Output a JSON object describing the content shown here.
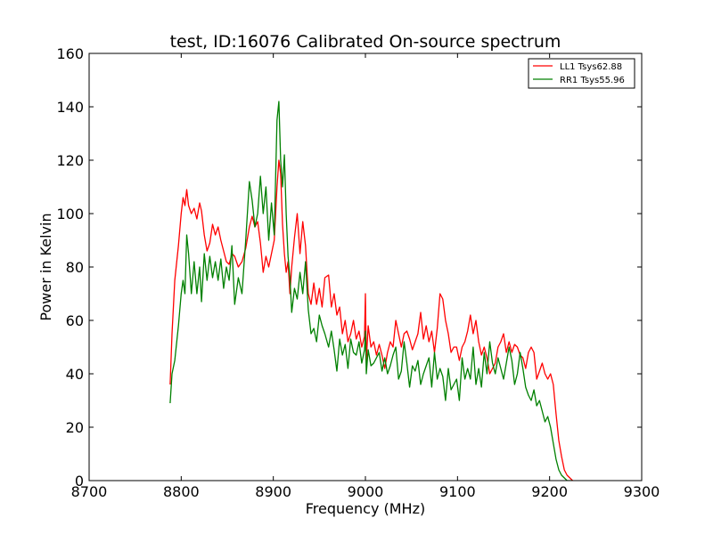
{
  "chart_data": {
    "type": "line",
    "title": "test, ID:16076 Calibrated On-source spectrum",
    "xlabel": "Frequency (MHz)",
    "ylabel": "Power in Kelvin",
    "xlim": [
      8700,
      9300
    ],
    "ylim": [
      0,
      160
    ],
    "xticks": [
      8700,
      8800,
      8900,
      9000,
      9100,
      9200,
      9300
    ],
    "yticks": [
      0,
      20,
      40,
      60,
      80,
      100,
      120,
      140,
      160
    ],
    "grid": false,
    "legend_position": "top-right",
    "series": [
      {
        "name": "LL1 Tsys62.88",
        "color": "#ff0000",
        "x": [
          8788,
          8790,
          8793,
          8797,
          8800,
          8802,
          8804,
          8806,
          8808,
          8811,
          8814,
          8817,
          8820,
          8822,
          8825,
          8828,
          8831,
          8834,
          8837,
          8840,
          8843,
          8846,
          8849,
          8852,
          8855,
          8858,
          8862,
          8866,
          8870,
          8874,
          8877,
          8880,
          8883,
          8886,
          8889,
          8892,
          8895,
          8898,
          8901,
          8904,
          8906,
          8908,
          8910,
          8912,
          8914,
          8916,
          8918,
          8920,
          8923,
          8926,
          8929,
          8932,
          8935,
          8938,
          8941,
          8944,
          8947,
          8950,
          8953,
          8956,
          8960,
          8963,
          8966,
          8969,
          8972,
          8975,
          8978,
          8981,
          8984,
          8987,
          8990,
          8993,
          8996,
          8999,
          9000,
          9001,
          9003,
          9006,
          9009,
          9012,
          9015,
          9018,
          9021,
          9024,
          9027,
          9030,
          9033,
          9036,
          9039,
          9042,
          9045,
          9048,
          9051,
          9054,
          9057,
          9060,
          9063,
          9066,
          9069,
          9072,
          9075,
          9078,
          9081,
          9084,
          9087,
          9090,
          9093,
          9096,
          9099,
          9102,
          9105,
          9108,
          9111,
          9114,
          9117,
          9120,
          9123,
          9126,
          9129,
          9132,
          9135,
          9138,
          9141,
          9144,
          9147,
          9150,
          9153,
          9156,
          9159,
          9162,
          9165,
          9168,
          9171,
          9174,
          9177,
          9180,
          9183,
          9186,
          9189,
          9192,
          9195,
          9198,
          9201,
          9204,
          9207,
          9210,
          9213,
          9216,
          9219,
          9222,
          9225
        ],
        "values": [
          36,
          55,
          75,
          88,
          100,
          106,
          103,
          109,
          103,
          100,
          102,
          98,
          104,
          101,
          92,
          86,
          89,
          96,
          92,
          95,
          90,
          86,
          82,
          81,
          85,
          84,
          80,
          82,
          87,
          95,
          99,
          95,
          97,
          89,
          78,
          84,
          80,
          85,
          90,
          110,
          120,
          115,
          96,
          85,
          78,
          82,
          70,
          80,
          91,
          100,
          85,
          97,
          88,
          70,
          66,
          74,
          66,
          72,
          65,
          76,
          77,
          65,
          70,
          62,
          65,
          55,
          60,
          52,
          55,
          60,
          53,
          56,
          50,
          54,
          70,
          45,
          58,
          50,
          52,
          47,
          51,
          47,
          42,
          48,
          52,
          50,
          60,
          55,
          50,
          55,
          56,
          53,
          49,
          52,
          55,
          63,
          53,
          58,
          52,
          56,
          48,
          57,
          70,
          68,
          60,
          55,
          48,
          50,
          50,
          45,
          50,
          52,
          56,
          62,
          55,
          60,
          52,
          47,
          50,
          46,
          40,
          42,
          44,
          50,
          52,
          55,
          48,
          52,
          48,
          51,
          50,
          47,
          46,
          42,
          48,
          50,
          48,
          38,
          41,
          44,
          40,
          38,
          40,
          36,
          25,
          15,
          9,
          4,
          2,
          1,
          0
        ]
      },
      {
        "name": "RR1 Tsys55.96",
        "color": "#008000",
        "x": [
          8788,
          8790,
          8793,
          8797,
          8800,
          8802,
          8804,
          8806,
          8808,
          8811,
          8814,
          8817,
          8820,
          8822,
          8825,
          8828,
          8831,
          8834,
          8837,
          8840,
          8843,
          8846,
          8849,
          8852,
          8855,
          8858,
          8862,
          8866,
          8870,
          8874,
          8877,
          8880,
          8883,
          8886,
          8889,
          8892,
          8895,
          8898,
          8901,
          8904,
          8906,
          8908,
          8910,
          8912,
          8914,
          8916,
          8918,
          8920,
          8923,
          8926,
          8929,
          8932,
          8935,
          8938,
          8941,
          8944,
          8947,
          8950,
          8953,
          8956,
          8960,
          8963,
          8966,
          8969,
          8972,
          8975,
          8978,
          8981,
          8984,
          8987,
          8990,
          8993,
          8996,
          8999,
          9000,
          9001,
          9003,
          9006,
          9009,
          9012,
          9015,
          9018,
          9021,
          9024,
          9027,
          9030,
          9033,
          9036,
          9039,
          9042,
          9045,
          9048,
          9051,
          9054,
          9057,
          9060,
          9063,
          9066,
          9069,
          9072,
          9075,
          9078,
          9081,
          9084,
          9087,
          9090,
          9093,
          9096,
          9099,
          9102,
          9105,
          9108,
          9111,
          9114,
          9117,
          9120,
          9123,
          9126,
          9129,
          9132,
          9135,
          9138,
          9141,
          9144,
          9147,
          9150,
          9153,
          9156,
          9159,
          9162,
          9165,
          9168,
          9171,
          9174,
          9177,
          9180,
          9183,
          9186,
          9189,
          9192,
          9195,
          9198,
          9201,
          9204,
          9207,
          9210,
          9213,
          9216,
          9219,
          9222,
          9225
        ],
        "values": [
          29,
          40,
          45,
          58,
          70,
          75,
          70,
          92,
          85,
          70,
          82,
          70,
          80,
          67,
          85,
          75,
          84,
          76,
          82,
          75,
          83,
          72,
          80,
          75,
          88,
          66,
          76,
          70,
          90,
          112,
          105,
          95,
          100,
          114,
          100,
          110,
          90,
          104,
          92,
          135,
          142,
          120,
          110,
          122,
          100,
          84,
          76,
          63,
          72,
          68,
          78,
          70,
          82,
          64,
          55,
          57,
          52,
          62,
          58,
          55,
          50,
          56,
          49,
          41,
          53,
          47,
          51,
          42,
          53,
          48,
          47,
          52,
          44,
          49,
          56,
          40,
          49,
          43,
          44,
          46,
          48,
          41,
          46,
          40,
          43,
          47,
          50,
          38,
          41,
          52,
          44,
          35,
          43,
          41,
          45,
          36,
          40,
          43,
          46,
          35,
          48,
          38,
          42,
          39,
          30,
          42,
          34,
          36,
          38,
          30,
          46,
          38,
          42,
          38,
          50,
          36,
          42,
          35,
          48,
          40,
          52,
          44,
          40,
          46,
          42,
          38,
          44,
          50,
          45,
          36,
          40,
          48,
          42,
          35,
          32,
          30,
          34,
          28,
          30,
          26,
          22,
          24,
          20,
          14,
          8,
          4,
          2,
          1,
          0,
          0,
          0
        ]
      }
    ]
  }
}
